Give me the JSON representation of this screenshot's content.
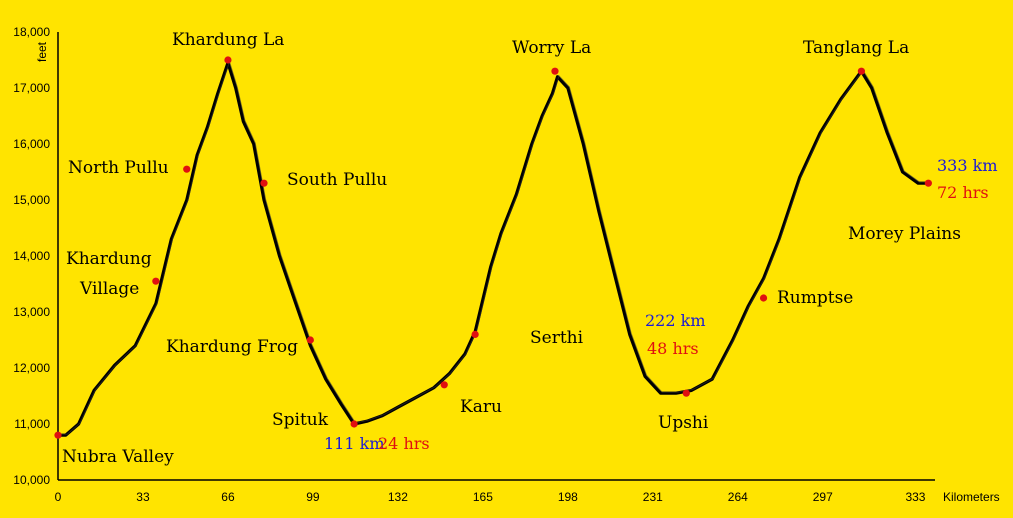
{
  "chart_data": {
    "type": "line",
    "title": "",
    "xlabel": "Kilometers",
    "ylabel": "feet",
    "xlim": [
      0,
      345
    ],
    "ylim": [
      10000,
      18000
    ],
    "x_ticks": [
      "0",
      "33",
      "66",
      "99",
      "132",
      "165",
      "198",
      "231",
      "264",
      "297",
      "333"
    ],
    "y_ticks": [
      "10,000",
      "11,000",
      "12,000",
      "13,000",
      "14,000",
      "15,000",
      "16,000",
      "17,000",
      "18,000"
    ],
    "grid": false,
    "legend": "none",
    "series": [
      {
        "x": [
          0,
          3,
          8,
          14,
          22,
          30,
          38,
          44,
          50,
          54,
          58,
          62,
          66,
          69,
          72,
          76,
          80,
          86,
          92,
          98,
          104,
          110,
          115,
          120,
          126,
          132,
          138,
          146,
          152,
          158,
          162,
          168,
          172,
          178,
          184,
          188,
          192,
          194,
          198,
          204,
          210,
          216,
          222,
          228,
          234,
          240,
          246,
          254,
          262,
          268,
          274,
          280,
          288,
          296,
          304,
          312,
          316,
          322,
          328,
          334,
          338
        ],
        "y": [
          10800,
          10800,
          11000,
          11600,
          12050,
          12400,
          13150,
          14300,
          15000,
          15800,
          16300,
          16900,
          17450,
          17000,
          16400,
          16000,
          15000,
          14000,
          13200,
          12400,
          11800,
          11350,
          11000,
          11050,
          11150,
          11300,
          11450,
          11650,
          11900,
          12250,
          12650,
          13800,
          14400,
          15100,
          16000,
          16500,
          16900,
          17200,
          17000,
          16000,
          14800,
          13700,
          12600,
          11850,
          11550,
          11550,
          11600,
          11800,
          12500,
          13100,
          13600,
          14300,
          15400,
          16200,
          16800,
          17300,
          17000,
          16200,
          15500,
          15300,
          15300
        ]
      }
    ],
    "waypoints": [
      {
        "label": "Nubra Valley",
        "km": 0,
        "ft": 10800
      },
      {
        "label": "Khardung Village",
        "km": 38,
        "ft": 13550
      },
      {
        "label": "North Pullu",
        "km": 50,
        "ft": 15550
      },
      {
        "label": "Khardung La",
        "km": 66,
        "ft": 17500
      },
      {
        "label": "South Pullu",
        "km": 80,
        "ft": 15300
      },
      {
        "label": "Khardung Frog",
        "km": 98,
        "ft": 12500
      },
      {
        "label": "Spituk",
        "km": 115,
        "ft": 11000
      },
      {
        "label": "Karu",
        "km": 150,
        "ft": 11700
      },
      {
        "label": "Serthi",
        "km": 162,
        "ft": 12600
      },
      {
        "label": "Worry La",
        "km": 193,
        "ft": 17300
      },
      {
        "label": "Upshi",
        "km": 244,
        "ft": 11550
      },
      {
        "label": "Rumptse",
        "km": 274,
        "ft": 13250
      },
      {
        "label": "Tanglang La",
        "km": 312,
        "ft": 17300
      },
      {
        "label": "Morey Plains",
        "km": 338,
        "ft": 15300
      }
    ],
    "annotations": [
      {
        "distance": "111 km",
        "time": "24 hrs"
      },
      {
        "distance": "222 km",
        "time": "48 hrs"
      },
      {
        "distance": "333 km",
        "time": "72 hrs"
      }
    ],
    "colors": {
      "background": "#FFE400",
      "line": "#000000",
      "marker": "#e01010",
      "distance_text": "#1a1ad6",
      "time_text": "#e01010"
    }
  }
}
